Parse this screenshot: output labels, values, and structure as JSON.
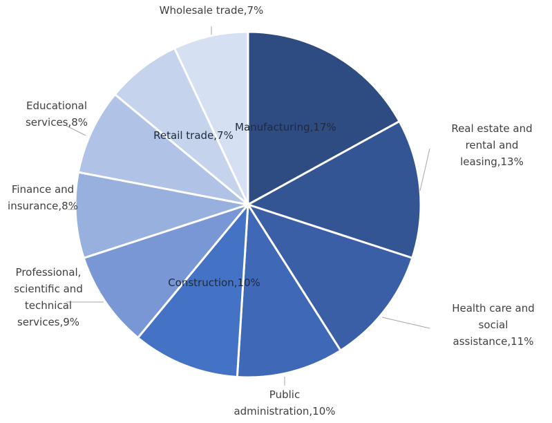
{
  "chart_data": {
    "type": "pie",
    "slices": [
      {
        "label": "Manufacturing,17%",
        "value": 17,
        "color": "#2e4b82"
      },
      {
        "label": "Real estate and rental and leasing,13%",
        "value": 13,
        "color": "#335593"
      },
      {
        "label": "Health care and social assistance,11%",
        "value": 11,
        "color": "#3a5fa6"
      },
      {
        "label": "Public administration,10%",
        "value": 10,
        "color": "#3f68b7"
      },
      {
        "label": "Construction,10%",
        "value": 10,
        "color": "#4472c4"
      },
      {
        "label": "Professional, scientific and technical services,9%",
        "value": 9,
        "color": "#7997d4"
      },
      {
        "label": "Finance and insurance,8%",
        "value": 8,
        "color": "#98b0de"
      },
      {
        "label": "Educational services,8%",
        "value": 8,
        "color": "#b0c3e6"
      },
      {
        "label": "Retail trade,7%",
        "value": 7,
        "color": "#c5d3ed"
      },
      {
        "label": "Wholesale trade,7%",
        "value": 7,
        "color": "#d6e0f3"
      }
    ]
  }
}
